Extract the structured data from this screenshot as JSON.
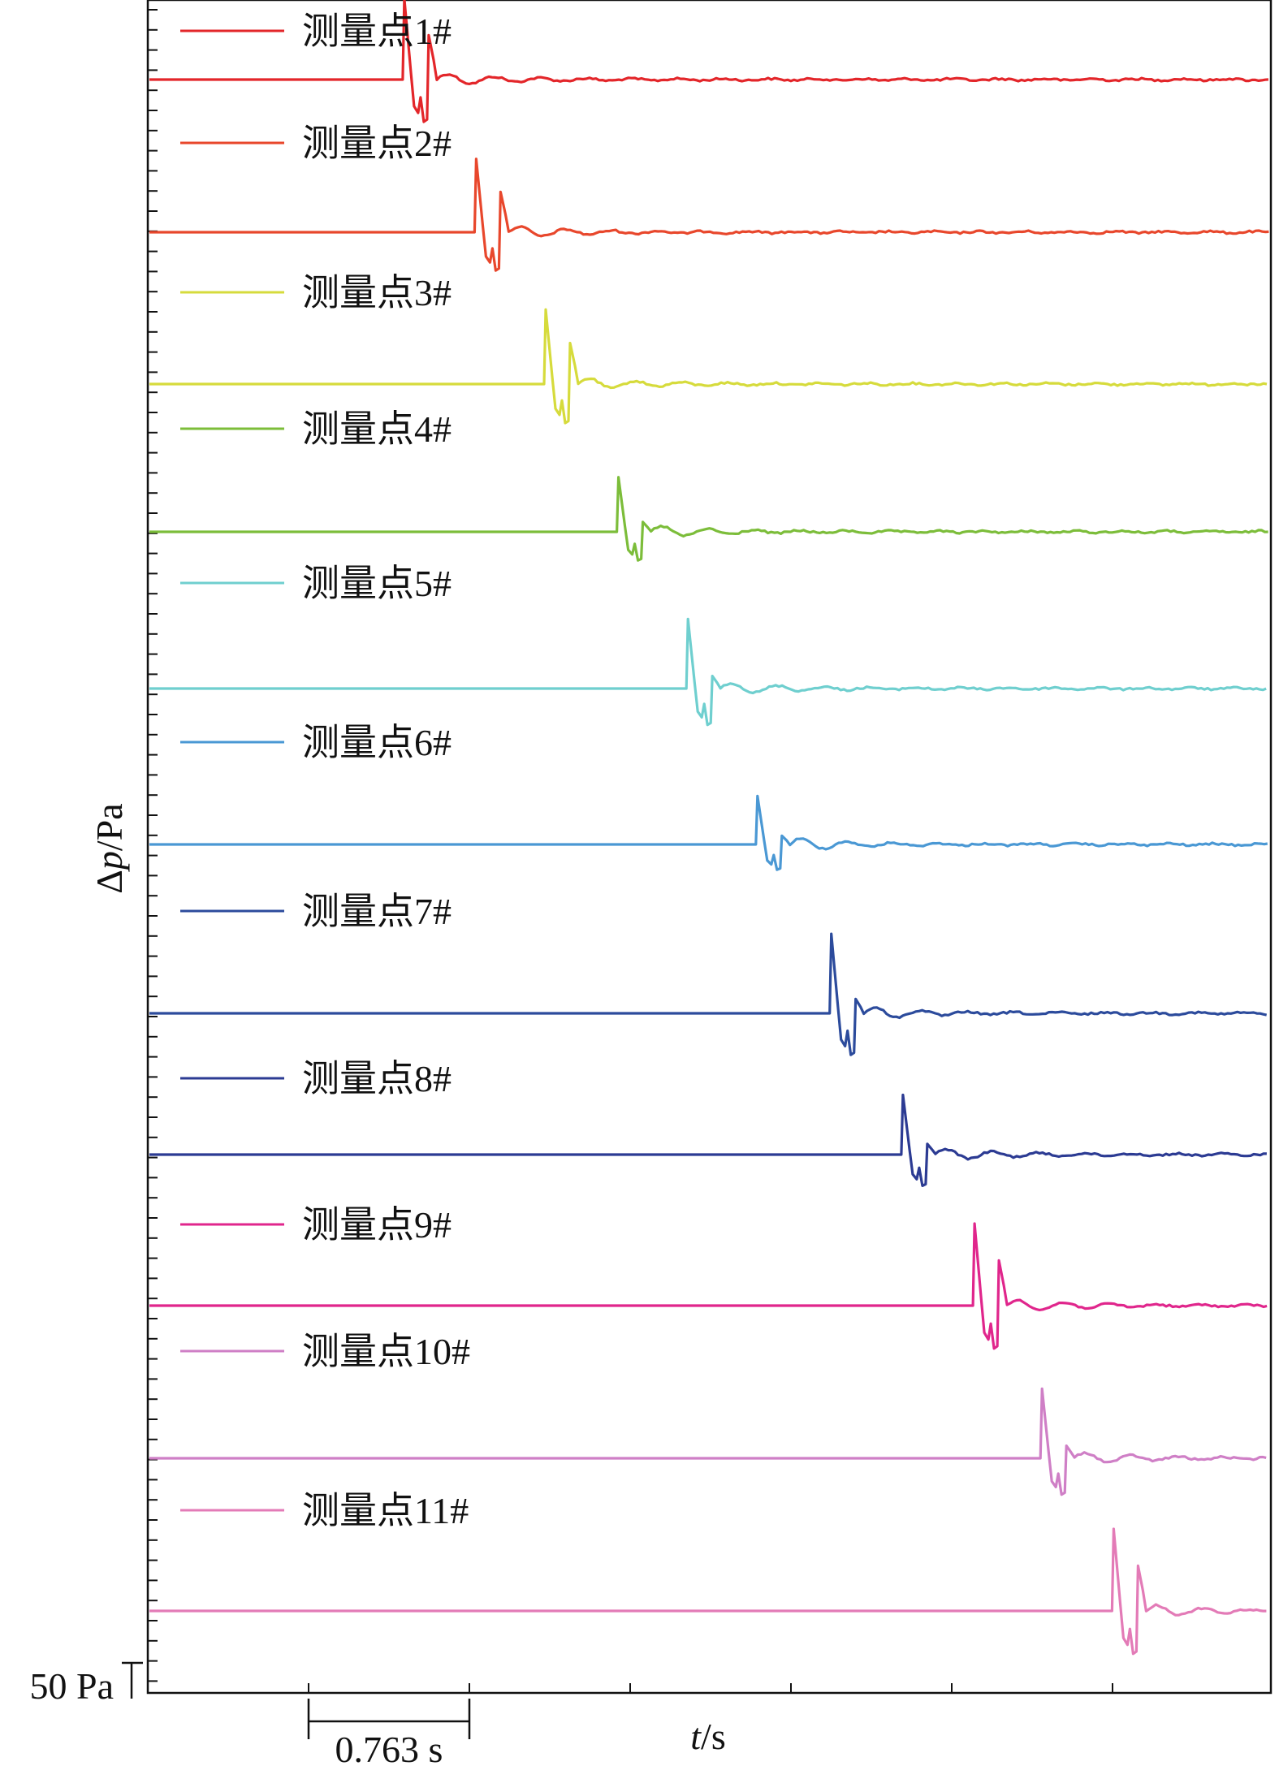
{
  "chart_data": {
    "type": "line",
    "title": "",
    "xlabel_italic": "t",
    "xlabel_unit": "/s",
    "ylabel_prefix": "Δ",
    "ylabel_italic": "p",
    "ylabel_unit": "/Pa",
    "x_scale_bar": {
      "label": "0.763 s",
      "value": 0.763
    },
    "y_scale_bar": {
      "label": "50 Pa",
      "value": 50
    },
    "xlim": [
      -1.0,
      6.0
    ],
    "series": [
      {
        "name": "测量点1#",
        "color": "#e3262a",
        "onset": 0.254,
        "amplitude": 130,
        "secondary_peak": true
      },
      {
        "name": "测量点2#",
        "color": "#e8472c",
        "onset": 0.595,
        "amplitude": 118,
        "secondary_peak": true
      },
      {
        "name": "测量点3#",
        "color": "#d6db3c",
        "onset": 0.925,
        "amplitude": 120,
        "secondary_peak": true
      },
      {
        "name": "测量点4#",
        "color": "#7cbd3a",
        "onset": 1.27,
        "amplitude": 88,
        "secondary_peak": false
      },
      {
        "name": "测量点5#",
        "color": "#6fcfcf",
        "onset": 1.6,
        "amplitude": 112,
        "secondary_peak": false
      },
      {
        "name": "测量点6#",
        "color": "#4a98d4",
        "onset": 1.93,
        "amplitude": 78,
        "secondary_peak": false
      },
      {
        "name": "测量点7#",
        "color": "#2c4b9c",
        "onset": 2.28,
        "amplitude": 128,
        "secondary_peak": false
      },
      {
        "name": "测量点8#",
        "color": "#2c3b93",
        "onset": 2.62,
        "amplitude": 96,
        "secondary_peak": false
      },
      {
        "name": "测量点9#",
        "color": "#e0268c",
        "onset": 2.96,
        "amplitude": 132,
        "secondary_peak": true
      },
      {
        "name": "测量点10#",
        "color": "#cf7fc6",
        "onset": 3.28,
        "amplitude": 112,
        "secondary_peak": false
      },
      {
        "name": "测量点11#",
        "color": "#e37bb7",
        "onset": 3.62,
        "amplitude": 132,
        "secondary_peak": true
      }
    ]
  }
}
